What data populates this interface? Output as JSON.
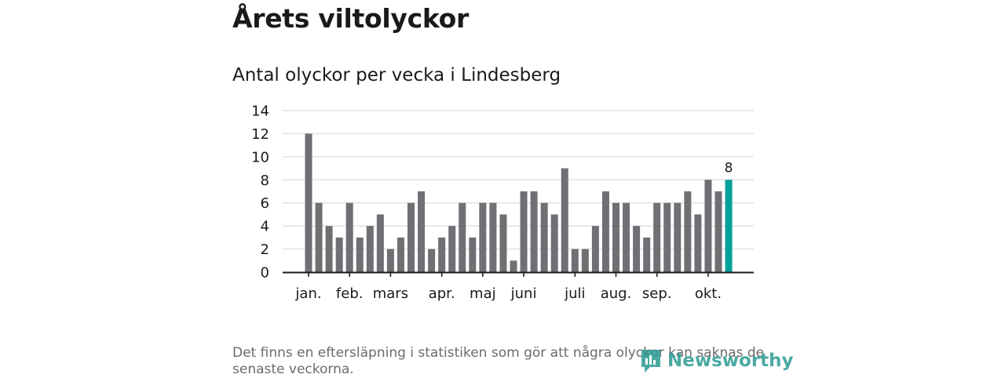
{
  "header": {
    "title": "Årets viltolyckor",
    "subtitle": "Antal olyckor per vecka i Lindesberg"
  },
  "footer": {
    "note": "Det finns en eftersläpning i statistiken som gör att några olyckor kan saknas de senaste veckorna.",
    "brand": "Newsworthy"
  },
  "colors": {
    "bar": "#6f6f74",
    "highlight": "#00a19a",
    "grid": "#dcdcdc",
    "axis": "#1a1a1a",
    "brand": "#2b9c93"
  },
  "chart_data": {
    "type": "bar",
    "title": "Antal olyckor per vecka i Lindesberg",
    "xlabel": "",
    "ylabel": "",
    "ylim": [
      0,
      14
    ],
    "yticks": [
      0,
      2,
      4,
      6,
      8,
      10,
      12,
      14
    ],
    "grid": true,
    "weeks": [
      1,
      2,
      3,
      4,
      5,
      6,
      7,
      8,
      9,
      10,
      11,
      12,
      13,
      14,
      15,
      16,
      17,
      18,
      19,
      20,
      21,
      22,
      23,
      24,
      25,
      26,
      27,
      28,
      29,
      30,
      31,
      32,
      33,
      34,
      35,
      36,
      37,
      38,
      39,
      40,
      41,
      42
    ],
    "values": [
      12,
      6,
      4,
      3,
      6,
      3,
      4,
      5,
      2,
      3,
      6,
      7,
      2,
      3,
      4,
      6,
      3,
      6,
      6,
      5,
      1,
      7,
      7,
      6,
      5,
      9,
      2,
      2,
      4,
      7,
      6,
      6,
      4,
      3,
      6,
      6,
      6,
      7,
      5,
      8,
      7,
      8
    ],
    "highlight_index": 41,
    "highlight_label": "8",
    "month_labels": [
      {
        "label": "jan.",
        "bar_index": 0
      },
      {
        "label": "feb.",
        "bar_index": 4
      },
      {
        "label": "mars",
        "bar_index": 8
      },
      {
        "label": "apr.",
        "bar_index": 13
      },
      {
        "label": "maj",
        "bar_index": 17
      },
      {
        "label": "juni",
        "bar_index": 21
      },
      {
        "label": "juli",
        "bar_index": 26
      },
      {
        "label": "aug.",
        "bar_index": 30
      },
      {
        "label": "sep.",
        "bar_index": 34
      },
      {
        "label": "okt.",
        "bar_index": 39
      }
    ]
  }
}
